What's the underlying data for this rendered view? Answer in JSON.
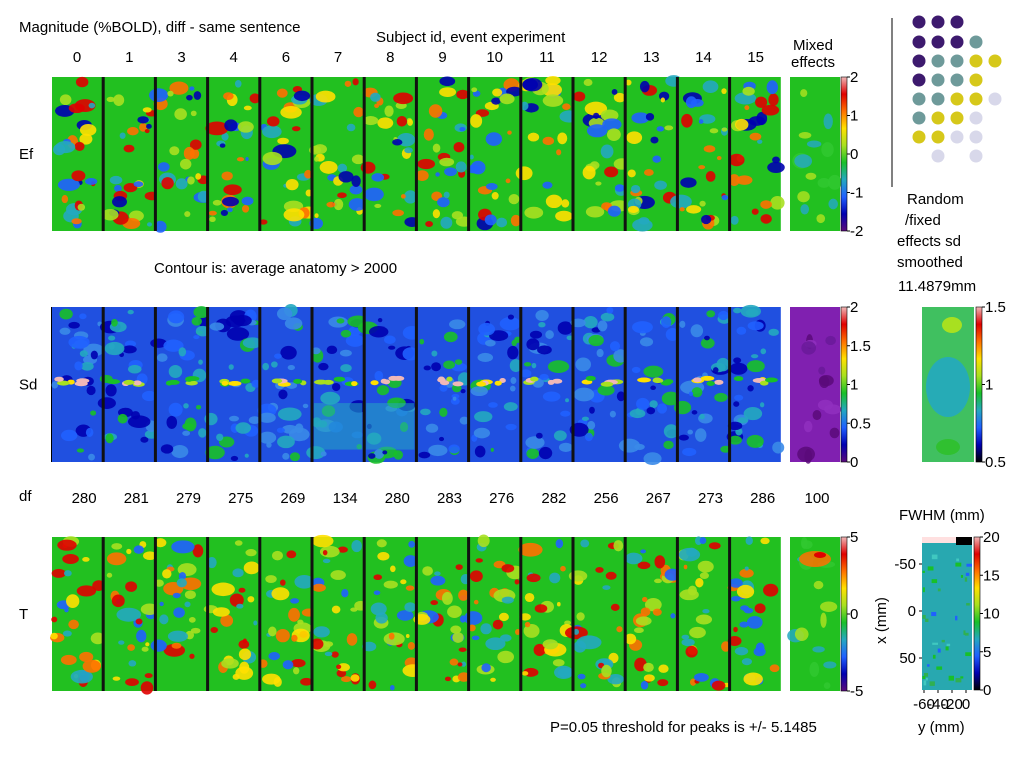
{
  "figure": {
    "title": "Magnitude (%BOLD), diff - same sentence",
    "subtitle": "Subject id, event experiment",
    "contour_note": "Contour is: average anatomy > 2000",
    "threshold_note": "P=0.05 threshold for peaks is +/- 5.1485",
    "mixed_effects_label": [
      "Mixed",
      "effects"
    ],
    "random_fixed_label": [
      "Random",
      "/fixed",
      "effects sd",
      "smoothed"
    ],
    "smoothing_value": "11.4879mm",
    "fwhm_label": "FWHM (mm)",
    "fwhm_xlabel": "y (mm)",
    "fwhm_ylabel": "x (mm)",
    "df_label": "df"
  },
  "chart_data": {
    "type": "heatmap",
    "subjects": [
      "0",
      "1",
      "3",
      "4",
      "6",
      "7",
      "8",
      "9",
      "10",
      "11",
      "12",
      "13",
      "14",
      "15"
    ],
    "rows": [
      {
        "label": "Ef",
        "colorbar": {
          "ticks": [
            "2",
            "1",
            "0",
            "-1",
            "-2"
          ],
          "range": [
            -2,
            2
          ]
        }
      },
      {
        "label": "Sd",
        "colorbar": {
          "ticks": [
            "2",
            "1.5",
            "1",
            "0.5",
            "0"
          ],
          "range": [
            0,
            2
          ]
        }
      },
      {
        "label": "T",
        "colorbar": {
          "ticks": [
            "5",
            "0",
            "-5"
          ],
          "range": [
            -5,
            5
          ]
        }
      }
    ],
    "df": {
      "values": [
        "280",
        "281",
        "279",
        "275",
        "269",
        "134",
        "280",
        "283",
        "276",
        "282",
        "256",
        "267",
        "273",
        "286"
      ],
      "mixed": "100"
    },
    "random_fixed_colorbar": {
      "ticks": [
        "1.5",
        "1",
        "0.5"
      ],
      "range": [
        0.5,
        1.5
      ]
    },
    "fwhm": {
      "colorbar": {
        "ticks": [
          "20",
          "15",
          "10",
          "5",
          "0"
        ],
        "range": [
          0,
          20
        ]
      },
      "x_ticks": [
        "-50",
        "0",
        "50"
      ],
      "y_ticks": [
        "-60",
        "-40",
        "-20",
        "0"
      ]
    }
  },
  "colors": {
    "spectral": [
      "#5a0a7a",
      "#0000b0",
      "#2060ff",
      "#24a8c0",
      "#18c028",
      "#a8e020",
      "#ffe000",
      "#ff7000",
      "#e00000",
      "#f0b8b8"
    ],
    "ef_bg": "#22c020",
    "sd_bg": "#2050e0",
    "mixed_sd_bg": "#8020b0",
    "legend_dots": [
      "#3d1a6e",
      "#6e9a9a",
      "#d6c81a",
      "#d8d8ea"
    ]
  }
}
